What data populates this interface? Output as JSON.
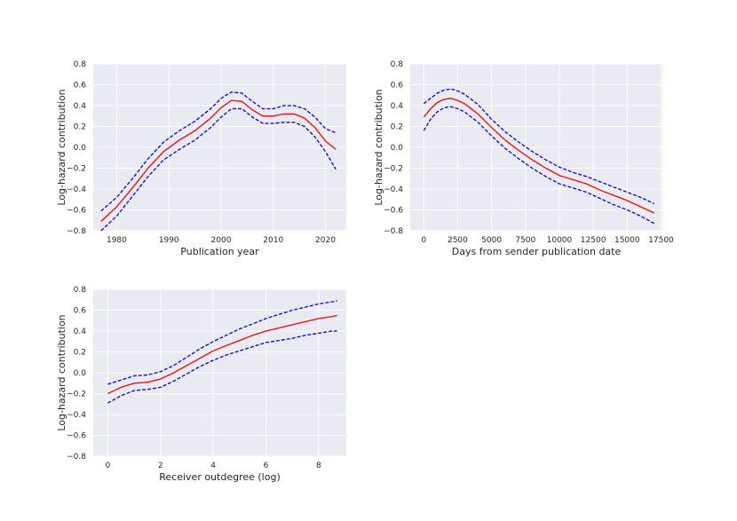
{
  "chart_data": [
    {
      "type": "line",
      "title": "",
      "xlabel": "Publication year",
      "ylabel": "Log-hazard contribution",
      "xlim": [
        1975.5,
        2024
      ],
      "ylim": [
        -0.8,
        0.8
      ],
      "xticks": [
        1980,
        1990,
        2000,
        2010,
        2020
      ],
      "xtick_labels": [
        "1980",
        "1990",
        "2000",
        "2010",
        "2020"
      ],
      "yticks": [
        -0.8,
        -0.6,
        -0.4,
        -0.2,
        0.0,
        0.2,
        0.4,
        0.6,
        0.8
      ],
      "ytick_labels": [
        "−0.8",
        "−0.6",
        "−0.4",
        "−0.2",
        "0.0",
        "0.2",
        "0.4",
        "0.6",
        "0.8"
      ],
      "grid": true,
      "x": [
        1977,
        1980,
        1983,
        1986,
        1989,
        1992,
        1995,
        1998,
        2000,
        2002,
        2004,
        2006,
        2008,
        2010,
        2012,
        2014,
        2016,
        2018,
        2020,
        2022
      ],
      "series": [
        {
          "name": "estimate",
          "color": "#ff0000",
          "style": "solid",
          "values": [
            -0.71,
            -0.57,
            -0.39,
            -0.2,
            -0.04,
            0.07,
            0.16,
            0.28,
            0.38,
            0.45,
            0.44,
            0.36,
            0.3,
            0.3,
            0.32,
            0.32,
            0.28,
            0.19,
            0.06,
            -0.02
          ]
        },
        {
          "name": "upper",
          "color": "#0000ff",
          "style": "dashed",
          "values": [
            -0.61,
            -0.48,
            -0.3,
            -0.11,
            0.05,
            0.16,
            0.25,
            0.37,
            0.47,
            0.53,
            0.52,
            0.44,
            0.37,
            0.37,
            0.4,
            0.4,
            0.37,
            0.29,
            0.18,
            0.14
          ]
        },
        {
          "name": "lower",
          "color": "#0000ff",
          "style": "dashed",
          "values": [
            -0.8,
            -0.66,
            -0.47,
            -0.28,
            -0.12,
            -0.02,
            0.07,
            0.19,
            0.29,
            0.37,
            0.37,
            0.29,
            0.23,
            0.23,
            0.24,
            0.24,
            0.2,
            0.1,
            -0.04,
            -0.21
          ]
        }
      ]
    },
    {
      "type": "line",
      "title": "",
      "xlabel": "Days from sender publication date",
      "ylabel": "Log-hazard contribution",
      "xlim": [
        -1000,
        17600
      ],
      "ylim": [
        -0.8,
        0.8
      ],
      "xticks": [
        0,
        2500,
        5000,
        7500,
        10000,
        12500,
        15000,
        17500
      ],
      "xtick_labels": [
        "0",
        "2500",
        "5000",
        "7500",
        "10000",
        "12500",
        "15000",
        "17500"
      ],
      "yticks": [
        -0.8,
        -0.6,
        -0.4,
        -0.2,
        0.0,
        0.2,
        0.4,
        0.6,
        0.8
      ],
      "ytick_labels": [
        "−0.8",
        "−0.6",
        "−0.4",
        "−0.2",
        "0.0",
        "0.2",
        "0.4",
        "0.6",
        "0.8"
      ],
      "grid": true,
      "x": [
        0,
        500,
        1000,
        1500,
        2000,
        2500,
        3000,
        4000,
        5000,
        6000,
        7000,
        8000,
        9000,
        10000,
        11000,
        12000,
        13000,
        14000,
        15000,
        16000,
        17000
      ],
      "series": [
        {
          "name": "estimate",
          "color": "#ff0000",
          "style": "solid",
          "values": [
            0.29,
            0.37,
            0.43,
            0.46,
            0.47,
            0.45,
            0.42,
            0.32,
            0.19,
            0.07,
            -0.03,
            -0.12,
            -0.2,
            -0.27,
            -0.31,
            -0.35,
            -0.41,
            -0.46,
            -0.51,
            -0.57,
            -0.63
          ]
        },
        {
          "name": "upper",
          "color": "#0000ff",
          "style": "dashed",
          "values": [
            0.42,
            0.47,
            0.52,
            0.55,
            0.56,
            0.54,
            0.51,
            0.41,
            0.27,
            0.15,
            0.05,
            -0.04,
            -0.12,
            -0.19,
            -0.24,
            -0.28,
            -0.33,
            -0.38,
            -0.43,
            -0.48,
            -0.54
          ]
        },
        {
          "name": "lower",
          "color": "#0000ff",
          "style": "dashed",
          "values": [
            0.16,
            0.27,
            0.34,
            0.38,
            0.39,
            0.37,
            0.34,
            0.24,
            0.11,
            -0.01,
            -0.11,
            -0.2,
            -0.28,
            -0.35,
            -0.39,
            -0.43,
            -0.49,
            -0.55,
            -0.6,
            -0.66,
            -0.73
          ]
        }
      ]
    },
    {
      "type": "line",
      "title": "",
      "xlabel": "Receiver outdegree (log)",
      "ylabel": "Log-hazard contribution",
      "xlim": [
        -0.55,
        9.05
      ],
      "ylim": [
        -0.8,
        0.8
      ],
      "xticks": [
        0,
        2,
        4,
        6,
        8
      ],
      "xtick_labels": [
        "0",
        "2",
        "4",
        "6",
        "8"
      ],
      "yticks": [
        -0.8,
        -0.6,
        -0.4,
        -0.2,
        0.0,
        0.2,
        0.4,
        0.6,
        0.8
      ],
      "ytick_labels": [
        "−0.8",
        "−0.6",
        "−0.4",
        "−0.2",
        "0.0",
        "0.2",
        "0.4",
        "0.6",
        "0.8"
      ],
      "grid": true,
      "x": [
        0,
        0.5,
        1,
        1.5,
        2,
        2.5,
        3,
        3.5,
        4,
        4.5,
        5,
        5.5,
        6,
        6.5,
        7,
        7.5,
        8,
        8.5,
        8.7
      ],
      "series": [
        {
          "name": "estimate",
          "color": "#ff0000",
          "style": "solid",
          "values": [
            -0.2,
            -0.14,
            -0.1,
            -0.09,
            -0.06,
            0.0,
            0.07,
            0.14,
            0.21,
            0.26,
            0.31,
            0.36,
            0.4,
            0.43,
            0.46,
            0.49,
            0.52,
            0.54,
            0.55
          ]
        },
        {
          "name": "upper",
          "color": "#0000ff",
          "style": "dashed",
          "values": [
            -0.11,
            -0.07,
            -0.03,
            -0.02,
            0.01,
            0.07,
            0.15,
            0.23,
            0.3,
            0.36,
            0.42,
            0.47,
            0.52,
            0.56,
            0.6,
            0.63,
            0.66,
            0.68,
            0.69
          ]
        },
        {
          "name": "lower",
          "color": "#0000ff",
          "style": "dashed",
          "values": [
            -0.29,
            -0.22,
            -0.17,
            -0.16,
            -0.14,
            -0.08,
            -0.01,
            0.06,
            0.12,
            0.17,
            0.21,
            0.25,
            0.29,
            0.31,
            0.33,
            0.36,
            0.38,
            0.4,
            0.4
          ]
        }
      ]
    }
  ]
}
